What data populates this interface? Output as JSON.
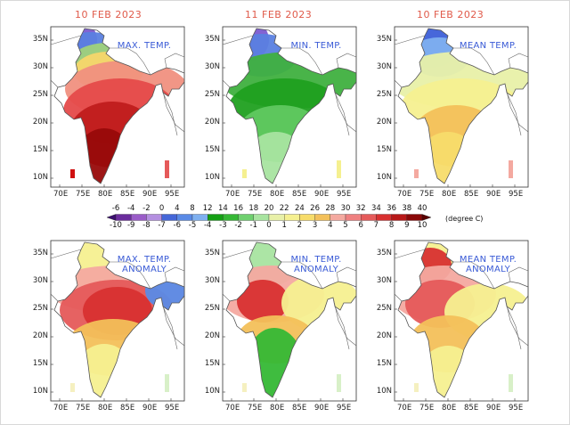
{
  "dates": [
    "10 FEB 2023",
    "11 FEB 2023",
    "10 FEB 2023"
  ],
  "panels": [
    {
      "label": "MAX. TEMP.",
      "type": "max_temp"
    },
    {
      "label": "MIN. TEMP.",
      "type": "min_temp"
    },
    {
      "label": "MEAN TEMP.",
      "type": "mean_temp"
    },
    {
      "label": "MAX. TEMP. ANOMALY",
      "type": "max_anom"
    },
    {
      "label": "MIN. TEMP. ANOMALY",
      "type": "min_anom"
    },
    {
      "label": "MEAN TEMP. ANOMALY",
      "type": "mean_anom"
    }
  ],
  "lat_labels": [
    "35N",
    "30N",
    "25N",
    "20N",
    "15N",
    "10N"
  ],
  "lon_labels": [
    "70E",
    "75E",
    "80E",
    "85E",
    "90E",
    "95E"
  ],
  "colorbar": {
    "temp_ticks": [
      "-6",
      "-4",
      "-2",
      "0",
      "4",
      "8",
      "12",
      "14",
      "16",
      "18",
      "20",
      "22",
      "24",
      "26",
      "28",
      "30",
      "32",
      "34",
      "36",
      "38",
      "40"
    ],
    "anomaly_ticks": [
      "-10",
      "-9",
      "-8",
      "-7",
      "-6",
      "-5",
      "-4",
      "-3",
      "-2",
      "-1",
      "0",
      "1",
      "2",
      "3",
      "4",
      "5",
      "6",
      "7",
      "8",
      "9",
      "10"
    ],
    "unit": "(degree C)",
    "colors": [
      "#3b0f6f",
      "#6a2c9c",
      "#9a5cc8",
      "#b48fe0",
      "#4466d8",
      "#5a8ae6",
      "#7fb0f0",
      "#14a014",
      "#35b835",
      "#6fd06f",
      "#a8e4a0",
      "#e8f0a8",
      "#f5f090",
      "#f7dc6a",
      "#f3c05a",
      "#f4a9a0",
      "#ef8080",
      "#e55a5a",
      "#d83030",
      "#b81818",
      "#8a0808",
      "#5a0000"
    ]
  },
  "colors": {
    "date": "#e05a4a",
    "label": "#3a5bd6",
    "coast": "#555555"
  }
}
